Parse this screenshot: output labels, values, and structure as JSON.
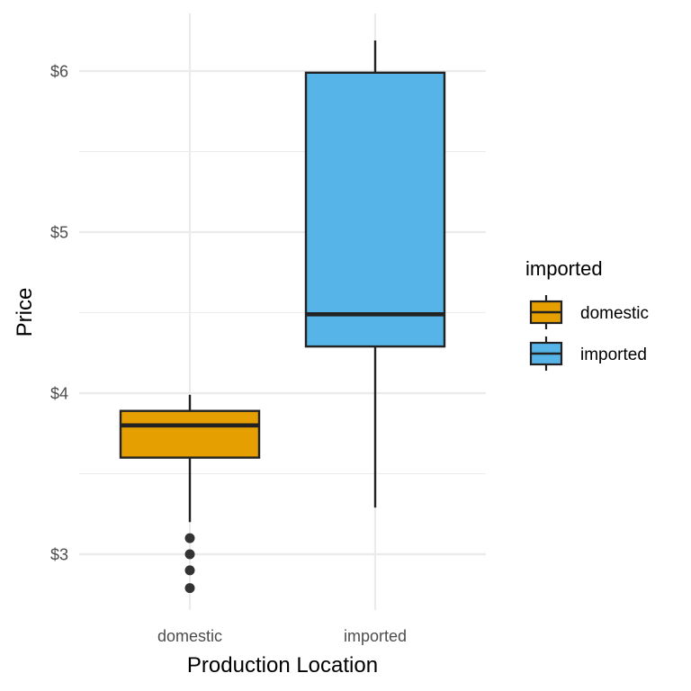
{
  "chart_data": {
    "type": "boxplot",
    "xlabel": "Production Location",
    "ylabel": "Price",
    "y_tick_labels": [
      "$3",
      "$4",
      "$5",
      "$6"
    ],
    "y_ticks": [
      3,
      4,
      5,
      6
    ],
    "ylim": [
      2.65,
      6.35
    ],
    "categories": [
      "domestic",
      "imported"
    ],
    "grid": true,
    "legend": {
      "title": "imported",
      "position": "right",
      "entries": [
        "domestic",
        "imported"
      ]
    },
    "series": [
      {
        "name": "domestic",
        "color": "#E69F00",
        "q1": 3.6,
        "median": 3.8,
        "q3": 3.89,
        "whisker_low": 3.2,
        "whisker_high": 3.99,
        "outliers": [
          3.1,
          3.0,
          2.9,
          2.79
        ]
      },
      {
        "name": "imported",
        "color": "#56B4E9",
        "q1": 4.29,
        "median": 4.49,
        "q3": 5.99,
        "whisker_low": 3.29,
        "whisker_high": 6.19,
        "outliers": []
      }
    ]
  }
}
